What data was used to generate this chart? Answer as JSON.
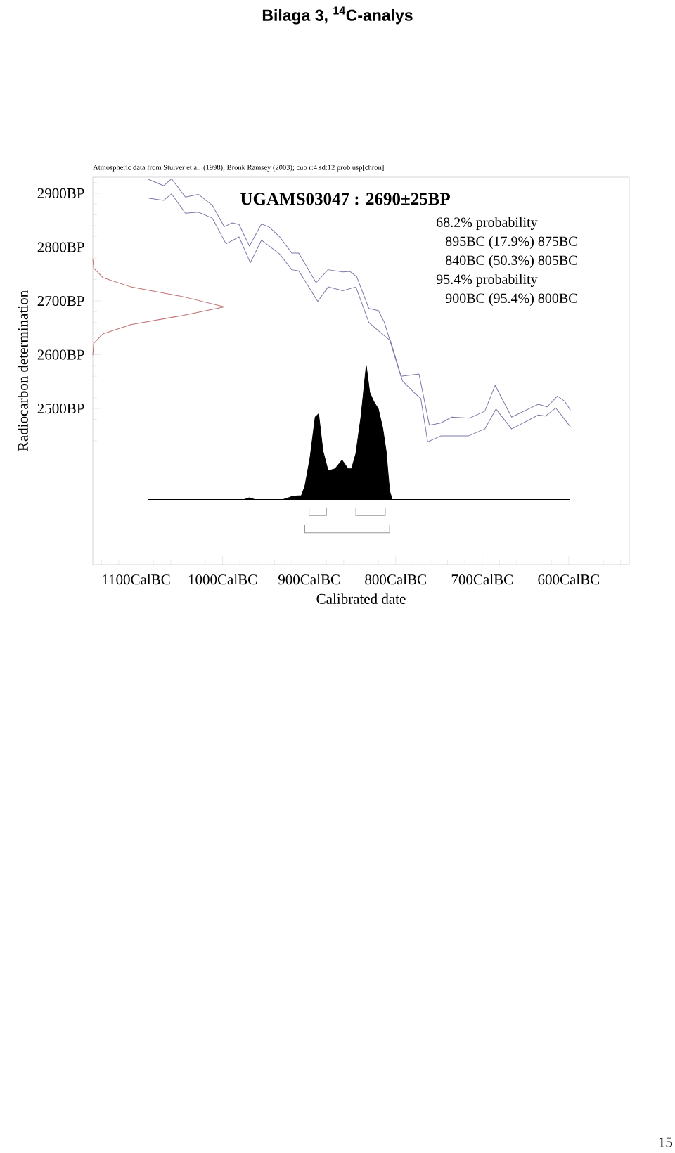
{
  "chart_data": {
    "type": "line",
    "title": "Bilaga 3, $^{14}$C-analys",
    "subtitle": "UGAMS03047 : 2690±25BP",
    "xlabel": "Calibrated date",
    "ylabel": "Radiocarbon determination",
    "annotations": [
      "Atmospheric data from Stuiver et al. (1998); Bronk Ramsey (2003); cub r:4 sd:12 prob usp[chron]",
      "68.2% probability",
      "895BC (17.9%) 875BC",
      "840BC (50.3%) 805BC",
      "95.4% probability",
      "900BC (95.4%) 800BC",
      "15"
    ],
    "xlim": [
      -1150,
      -530
    ],
    "ylim": [
      2210,
      2930
    ],
    "xticks": [
      {
        "value": -1100,
        "label": "1100CalBC"
      },
      {
        "value": -1000,
        "label": "1000CalBC"
      },
      {
        "value": -900,
        "label": "900CalBC"
      },
      {
        "value": -800,
        "label": "800CalBC"
      },
      {
        "value": -700,
        "label": "700CalBC"
      },
      {
        "value": -600,
        "label": "600CalBC"
      },
      {
        "value": -1140,
        "label": null
      },
      {
        "value": -1120,
        "label": null
      },
      {
        "value": -1080,
        "label": null
      },
      {
        "value": -1060,
        "label": null
      },
      {
        "value": -1040,
        "label": null
      },
      {
        "value": -1020,
        "label": null
      },
      {
        "value": -980,
        "label": null
      },
      {
        "value": -960,
        "label": null
      },
      {
        "value": -940,
        "label": null
      },
      {
        "value": -920,
        "label": null
      },
      {
        "value": -880,
        "label": null
      },
      {
        "value": -860,
        "label": null
      },
      {
        "value": -840,
        "label": null
      },
      {
        "value": -820,
        "label": null
      },
      {
        "value": -780,
        "label": null
      },
      {
        "value": -760,
        "label": null
      },
      {
        "value": -740,
        "label": null
      },
      {
        "value": -720,
        "label": null
      },
      {
        "value": -680,
        "label": null
      },
      {
        "value": -660,
        "label": null
      },
      {
        "value": -640,
        "label": null
      },
      {
        "value": -620,
        "label": null
      },
      {
        "value": -580,
        "label": null
      },
      {
        "value": -560,
        "label": null
      },
      {
        "value": -540,
        "label": null
      }
    ],
    "yticks": [
      {
        "value": 2500,
        "label": "2500BP"
      },
      {
        "value": 2600,
        "label": "2600BP"
      },
      {
        "value": 2700,
        "label": "2700BP"
      },
      {
        "value": 2800,
        "label": "2800BP"
      },
      {
        "value": 2900,
        "label": "2900BP"
      },
      {
        "value": 2440,
        "label": null
      },
      {
        "value": 2460,
        "label": null
      },
      {
        "value": 2480,
        "label": null
      },
      {
        "value": 2520,
        "label": null
      },
      {
        "value": 2540,
        "label": null
      },
      {
        "value": 2560,
        "label": null
      },
      {
        "value": 2580,
        "label": null
      },
      {
        "value": 2620,
        "label": null
      },
      {
        "value": 2640,
        "label": null
      },
      {
        "value": 2660,
        "label": null
      },
      {
        "value": 2680,
        "label": null
      },
      {
        "value": 2720,
        "label": null
      },
      {
        "value": 2740,
        "label": null
      },
      {
        "value": 2760,
        "label": null
      },
      {
        "value": 2780,
        "label": null
      },
      {
        "value": 2820,
        "label": null
      },
      {
        "value": 2840,
        "label": null
      },
      {
        "value": 2860,
        "label": null
      },
      {
        "value": 2880,
        "label": null
      },
      {
        "value": 2920,
        "label": null
      }
    ],
    "series": [
      {
        "color": "#7a7aaa",
        "x": [
          -1086,
          -1068,
          -1059,
          -1043,
          -1028,
          -1012,
          -998,
          -989,
          -981,
          -969,
          -955,
          -946,
          -934,
          -920,
          -912,
          -892,
          -878,
          -861,
          -853,
          -845,
          -831,
          -820,
          -813,
          -794,
          -773,
          -761,
          -748,
          -735,
          -715,
          -697,
          -685,
          -666,
          -635,
          -625,
          -613,
          -605,
          -598
        ],
        "values": [
          2926,
          2914,
          2927,
          2893,
          2898,
          2878,
          2838,
          2845,
          2842,
          2802,
          2843,
          2837,
          2819,
          2789,
          2789,
          2734,
          2758,
          2754,
          2755,
          2745,
          2686,
          2682,
          2660,
          2560,
          2564,
          2469,
          2473,
          2484,
          2482,
          2495,
          2543,
          2484,
          2508,
          2503,
          2523,
          2514,
          2497
        ]
      },
      {
        "color": "#7a7aaa",
        "x": [
          -1086,
          -1068,
          -1059,
          -1043,
          -1028,
          -1012,
          -996,
          -981,
          -968,
          -955,
          -934,
          -920,
          -912,
          -890,
          -878,
          -861,
          -846,
          -831,
          -816,
          -806,
          -792,
          -777,
          -771,
          -763,
          -748,
          -716,
          -697,
          -684,
          -666,
          -635,
          -627,
          -615,
          -598
        ],
        "values": [
          2891,
          2887,
          2899,
          2863,
          2865,
          2854,
          2806,
          2819,
          2771,
          2813,
          2787,
          2758,
          2756,
          2699,
          2726,
          2719,
          2726,
          2660,
          2639,
          2626,
          2551,
          2527,
          2519,
          2438,
          2449,
          2449,
          2462,
          2499,
          2462,
          2488,
          2486,
          2501,
          2466
        ]
      },
      {
        "color": "#c07070",
        "x": [
          -1150,
          -1149,
          -1138,
          -1106,
          -1046,
          -998,
          -1046,
          -1106,
          -1138,
          -1149,
          -1150
        ],
        "values": [
          2778,
          2761,
          2743,
          2726,
          2708,
          2689,
          2673,
          2656,
          2639,
          2621,
          2599
        ]
      },
      {
        "type": "area",
        "color": "#000000",
        "x": [
          -1086,
          -975,
          -969,
          -963,
          -930,
          -924,
          -919,
          -909,
          -905,
          -899,
          -893,
          -889,
          -884,
          -878,
          -870,
          -862,
          -855,
          -851,
          -846,
          -840,
          -834,
          -830,
          -825,
          -820,
          -815,
          -811,
          -807,
          -804,
          -599
        ],
        "values": [
          2331,
          2331,
          2334,
          2331,
          2331,
          2334,
          2337,
          2338,
          2355,
          2408,
          2484,
          2490,
          2421,
          2384,
          2388,
          2404,
          2388,
          2388,
          2416,
          2486,
          2580,
          2530,
          2512,
          2499,
          2464,
          2421,
          2347,
          2331,
          2331
        ]
      },
      {
        "color": "#999999",
        "x": [
          -900,
          -900,
          -880,
          -880
        ],
        "values": [
          2316,
          2301,
          2301,
          2316
        ]
      },
      {
        "color": "#999999",
        "x": [
          -846,
          -846,
          -812,
          -812
        ],
        "values": [
          2316,
          2301,
          2301,
          2316
        ]
      },
      {
        "color": "#999999",
        "x": [
          -905,
          -905,
          -807,
          -807
        ],
        "values": [
          2283,
          2269,
          2269,
          2283
        ]
      }
    ]
  }
}
